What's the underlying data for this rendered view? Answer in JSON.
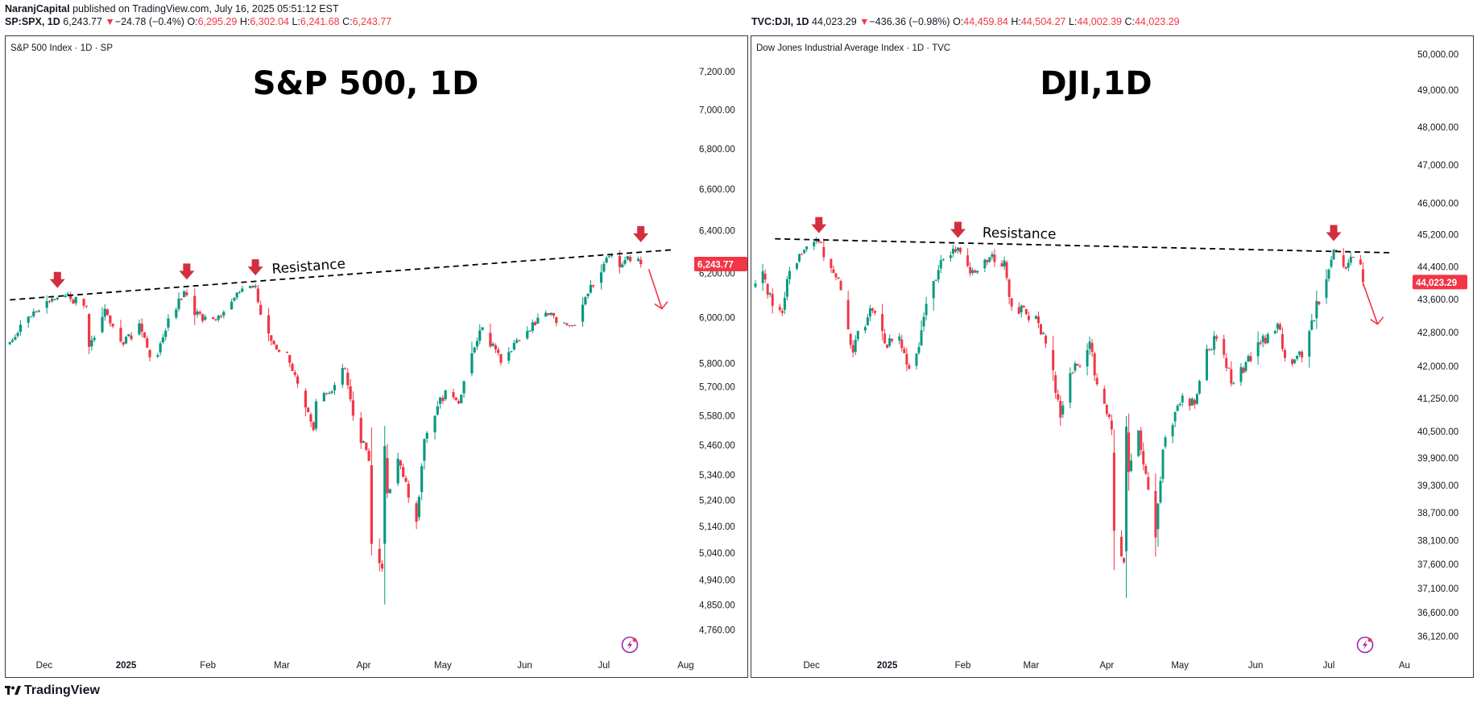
{
  "publisher": {
    "author": "NaranjCapital",
    "text": " published on TradingView.com, July 16, 2025 05:51:12 EST"
  },
  "left_header": {
    "symbol": "SP:SPX, 1D",
    "last": "6,243.77",
    "change": "−24.78 (−0.4%)",
    "o_label": "O:",
    "o": "6,295.29",
    "h_label": "H:",
    "h": "6,302.04",
    "l_label": "L:",
    "l": "6,241.68",
    "c_label": "C:",
    "c": "6,243.77"
  },
  "right_header": {
    "symbol": "TVC:DJI, 1D",
    "last": "44,023.29",
    "change": "−436.36 (−0.98%)",
    "o_label": "O:",
    "o": "44,459.84",
    "h_label": "H:",
    "h": "44,504.27",
    "l_label": "L:",
    "l": "44,002.39",
    "c_label": "C:",
    "c": "44,023.29"
  },
  "footer": {
    "brand": "TradingView",
    "logo_icon": "tradingview-logo-icon"
  },
  "colors": {
    "up": "#089981",
    "down": "#f23645",
    "arrow": "#d32f3f",
    "axis_text": "#131722",
    "price_badge": "#f23645"
  },
  "chart_data": [
    {
      "type": "candlestick",
      "subtitle": "S&P 500 Index · 1D · SP",
      "title": "S&P 500, 1D",
      "annotation": "Resistance",
      "last_price_label": "6,243.77",
      "y_scale": "log",
      "ylim": [
        4700,
        7300
      ],
      "y_ticks": [
        "7,200.00",
        "7,000.00",
        "6,800.00",
        "6,600.00",
        "6,400.00",
        "6,200.00",
        "6,000.00",
        "5,800.00",
        "5,700.00",
        "5,580.00",
        "5,460.00",
        "5,340.00",
        "5,240.00",
        "5,140.00",
        "5,040.00",
        "4,940.00",
        "4,850.00",
        "4,760.00"
      ],
      "x_ticks": [
        "Dec",
        "2025",
        "Feb",
        "Mar",
        "Apr",
        "May",
        "Jun",
        "Jul",
        "Aug"
      ],
      "x_tick_dates": [
        "2024-12-01",
        "2025-01-01",
        "2025-02-01",
        "2025-03-01",
        "2025-04-01",
        "2025-05-01",
        "2025-06-01",
        "2025-07-01",
        "2025-08-01"
      ],
      "xlim": [
        "2024-11-17",
        "2025-08-03"
      ],
      "resistance_line": [
        [
          "2024-11-18",
          6080
        ],
        [
          "2025-07-27",
          6310
        ]
      ],
      "peak_arrows": [
        [
          "2024-12-06",
          6090
        ],
        [
          "2025-01-24",
          6128
        ],
        [
          "2025-02-19",
          6147
        ],
        [
          "2025-07-15",
          6300
        ]
      ],
      "projection": [
        [
          "2025-07-18",
          6220
        ],
        [
          "2025-07-23",
          6040
        ]
      ],
      "path": [
        [
          "2024-11-18",
          5893
        ],
        [
          "2024-11-22",
          5969
        ],
        [
          "2024-11-29",
          6032
        ],
        [
          "2024-12-06",
          6090
        ],
        [
          "2024-12-11",
          6084
        ],
        [
          "2024-12-17",
          6050
        ],
        [
          "2024-12-18",
          5872
        ],
        [
          "2024-12-24",
          6040
        ],
        [
          "2024-12-31",
          5882
        ],
        [
          "2025-01-06",
          5975
        ],
        [
          "2025-01-10",
          5827
        ],
        [
          "2025-01-13",
          5836
        ],
        [
          "2025-01-17",
          5997
        ],
        [
          "2025-01-23",
          6119
        ],
        [
          "2025-01-24",
          6101
        ],
        [
          "2025-01-27",
          6012
        ],
        [
          "2025-02-03",
          5994
        ],
        [
          "2025-02-07",
          6026
        ],
        [
          "2025-02-13",
          6115
        ],
        [
          "2025-02-19",
          6144
        ],
        [
          "2025-02-21",
          6013
        ],
        [
          "2025-02-27",
          5861
        ],
        [
          "2025-03-03",
          5849
        ],
        [
          "2025-03-10",
          5614
        ],
        [
          "2025-03-13",
          5521
        ],
        [
          "2025-03-14",
          5639
        ],
        [
          "2025-03-19",
          5675
        ],
        [
          "2025-03-25",
          5776
        ],
        [
          "2025-03-28",
          5580
        ],
        [
          "2025-04-03",
          5396
        ],
        [
          "2025-04-04",
          5074
        ],
        [
          "2025-04-08",
          4982
        ],
        [
          "2025-04-09",
          5456
        ],
        [
          "2025-04-10",
          5268
        ],
        [
          "2025-04-14",
          5405
        ],
        [
          "2025-04-21",
          5158
        ],
        [
          "2025-04-24",
          5484
        ],
        [
          "2025-05-02",
          5686
        ],
        [
          "2025-05-07",
          5631
        ],
        [
          "2025-05-12",
          5844
        ],
        [
          "2025-05-16",
          5958
        ],
        [
          "2025-05-23",
          5803
        ],
        [
          "2025-05-28",
          5889
        ],
        [
          "2025-06-06",
          6000
        ],
        [
          "2025-06-11",
          6022
        ],
        [
          "2025-06-13",
          5977
        ],
        [
          "2025-06-20",
          5967
        ],
        [
          "2025-06-24",
          6092
        ],
        [
          "2025-06-30",
          6205
        ],
        [
          "2025-07-03",
          6279
        ],
        [
          "2025-07-07",
          6229
        ],
        [
          "2025-07-10",
          6280
        ],
        [
          "2025-07-14",
          6268
        ],
        [
          "2025-07-15",
          6243
        ]
      ]
    },
    {
      "type": "candlestick",
      "subtitle": "Dow Jones Industrial Average Index · 1D · TVC",
      "title": "DJI,1D",
      "annotation": "Resistance",
      "last_price_label": "44,023.29",
      "y_scale": "log",
      "ylim": [
        35900,
        50300
      ],
      "y_ticks": [
        "50,000.00",
        "49,000.00",
        "48,000.00",
        "47,000.00",
        "46,000.00",
        "45,200.00",
        "44,400.00",
        "43,600.00",
        "42,800.00",
        "42,000.00",
        "41,250.00",
        "40,500.00",
        "39,900.00",
        "39,300.00",
        "38,700.00",
        "38,100.00",
        "37,600.00",
        "37,100.00",
        "36,600.00",
        "36,120.00"
      ],
      "x_ticks": [
        "Dec",
        "2025",
        "Feb",
        "Mar",
        "Apr",
        "May",
        "Jun",
        "Jul",
        "Au"
      ],
      "x_tick_dates": [
        "2024-12-01",
        "2025-01-01",
        "2025-02-01",
        "2025-03-01",
        "2025-04-01",
        "2025-05-01",
        "2025-06-01",
        "2025-07-01",
        "2025-08-01"
      ],
      "xlim": [
        "2024-11-07",
        "2025-08-03"
      ],
      "resistance_line": [
        [
          "2024-11-16",
          45100
        ],
        [
          "2025-07-27",
          44750
        ]
      ],
      "peak_arrows": [
        [
          "2024-12-04",
          45000
        ],
        [
          "2025-01-30",
          44880
        ],
        [
          "2025-07-03",
          44800
        ]
      ],
      "projection": [
        [
          "2025-07-15",
          44000
        ],
        [
          "2025-07-21",
          43000
        ]
      ],
      "path": [
        [
          "2024-11-08",
          43988
        ],
        [
          "2024-11-11",
          44293
        ],
        [
          "2024-11-15",
          43445
        ],
        [
          "2024-11-19",
          43269
        ],
        [
          "2024-11-22",
          44296
        ],
        [
          "2024-11-29",
          44910
        ],
        [
          "2024-12-04",
          45014
        ],
        [
          "2024-12-06",
          44642
        ],
        [
          "2024-12-10",
          44248
        ],
        [
          "2024-12-13",
          43828
        ],
        [
          "2024-12-18",
          42326
        ],
        [
          "2024-12-20",
          42840
        ],
        [
          "2024-12-26",
          43325
        ],
        [
          "2024-12-31",
          42544
        ],
        [
          "2025-01-06",
          42706
        ],
        [
          "2025-01-10",
          41938
        ],
        [
          "2025-01-13",
          42297
        ],
        [
          "2025-01-17",
          43487
        ],
        [
          "2025-01-23",
          44565
        ],
        [
          "2025-01-28",
          44850
        ],
        [
          "2025-01-30",
          44882
        ],
        [
          "2025-02-03",
          44421
        ],
        [
          "2025-02-07",
          44303
        ],
        [
          "2025-02-13",
          44711
        ],
        [
          "2025-02-18",
          44556
        ],
        [
          "2025-02-21",
          43428
        ],
        [
          "2025-02-27",
          43239
        ],
        [
          "2025-03-03",
          43191
        ],
        [
          "2025-03-10",
          41911
        ],
        [
          "2025-03-13",
          40813
        ],
        [
          "2025-03-17",
          41841
        ],
        [
          "2025-03-21",
          41985
        ],
        [
          "2025-03-25",
          42587
        ],
        [
          "2025-03-28",
          41583
        ],
        [
          "2025-04-03",
          40545
        ],
        [
          "2025-04-04",
          38314
        ],
        [
          "2025-04-08",
          37645
        ],
        [
          "2025-04-09",
          40608
        ],
        [
          "2025-04-10",
          39593
        ],
        [
          "2025-04-14",
          40524
        ],
        [
          "2025-04-21",
          38170
        ],
        [
          "2025-04-24",
          40093
        ],
        [
          "2025-05-02",
          41317
        ],
        [
          "2025-05-07",
          41113
        ],
        [
          "2025-05-12",
          42410
        ],
        [
          "2025-05-16",
          42654
        ],
        [
          "2025-05-23",
          41603
        ],
        [
          "2025-05-28",
          42098
        ],
        [
          "2025-06-06",
          42762
        ],
        [
          "2025-06-11",
          42865
        ],
        [
          "2025-06-13",
          42197
        ],
        [
          "2025-06-20",
          42206
        ],
        [
          "2025-06-24",
          43089
        ],
        [
          "2025-06-30",
          44094
        ],
        [
          "2025-07-03",
          44828
        ],
        [
          "2025-07-07",
          44406
        ],
        [
          "2025-07-10",
          44650
        ],
        [
          "2025-07-14",
          44459
        ],
        [
          "2025-07-15",
          44023
        ]
      ]
    }
  ]
}
